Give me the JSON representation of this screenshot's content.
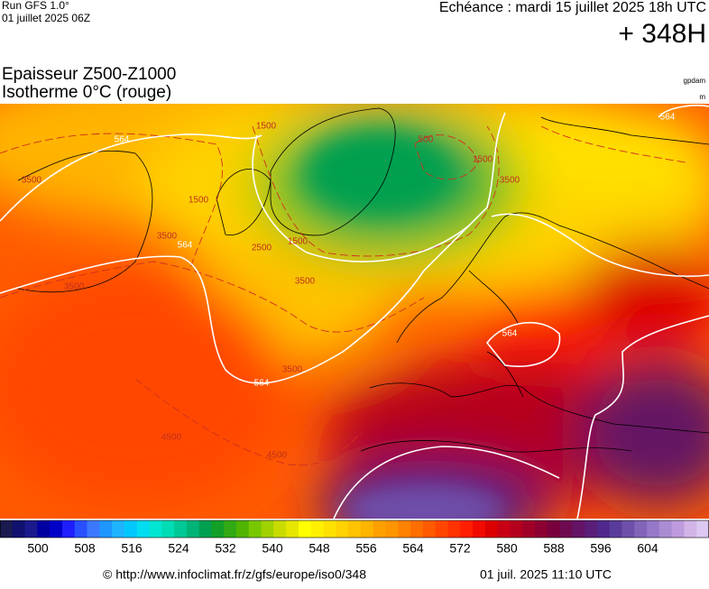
{
  "header": {
    "model": "Run GFS 1.0°",
    "run": "01 juillet 2025 06Z",
    "valid": "Echéance : mardi 15 juillet 2025 18h UTC",
    "lead": "+ 348H",
    "title1": "Epaisseur Z500-Z1000",
    "title2": "Isotherme 0°C (rouge)",
    "unit1": "gpdam",
    "unit2": "m"
  },
  "contour_labels": [
    "564",
    "564",
    "564",
    "564",
    "564",
    "3500",
    "3500",
    "3500",
    "3500",
    "3500",
    "2500",
    "1500",
    "1500",
    "1500",
    "1500",
    "500",
    "4500",
    "4500",
    "3500"
  ],
  "colorbar": {
    "colors": [
      "#1a1a50",
      "#10106e",
      "#1a1a8c",
      "#0000a0",
      "#0000c8",
      "#1e1eff",
      "#2850ff",
      "#3c78ff",
      "#1e96ff",
      "#1eb4ff",
      "#00c8ff",
      "#00dcf0",
      "#00e6d2",
      "#00dcb4",
      "#00c896",
      "#00b478",
      "#00a050",
      "#14a028",
      "#32aa14",
      "#50b400",
      "#78c800",
      "#a0d200",
      "#c8dc00",
      "#e6e600",
      "#ffff00",
      "#fff000",
      "#ffe100",
      "#ffd200",
      "#ffc300",
      "#ffb400",
      "#ffa000",
      "#ff9600",
      "#ff8200",
      "#ff6e00",
      "#ff5a00",
      "#ff4600",
      "#ff3200",
      "#ff1e00",
      "#f00a00",
      "#dc0000",
      "#c80014",
      "#b4001e",
      "#a00028",
      "#8c0032",
      "#78003c",
      "#6e0a50",
      "#641464",
      "#5a1e78",
      "#50288c",
      "#5a3c9b",
      "#6e50aa",
      "#8264b9",
      "#9678c8",
      "#aa8cd2",
      "#be9bdc",
      "#d2b4e6",
      "#dcc8f0"
    ],
    "labels": [
      500,
      508,
      516,
      524,
      532,
      540,
      548,
      556,
      564,
      572,
      580,
      588,
      596,
      604
    ]
  },
  "footer": {
    "source": "© http://www.infoclimat.fr/z/gfs/europe/iso0/348",
    "timestamp": "01 juil. 2025 11:10 UTC"
  }
}
